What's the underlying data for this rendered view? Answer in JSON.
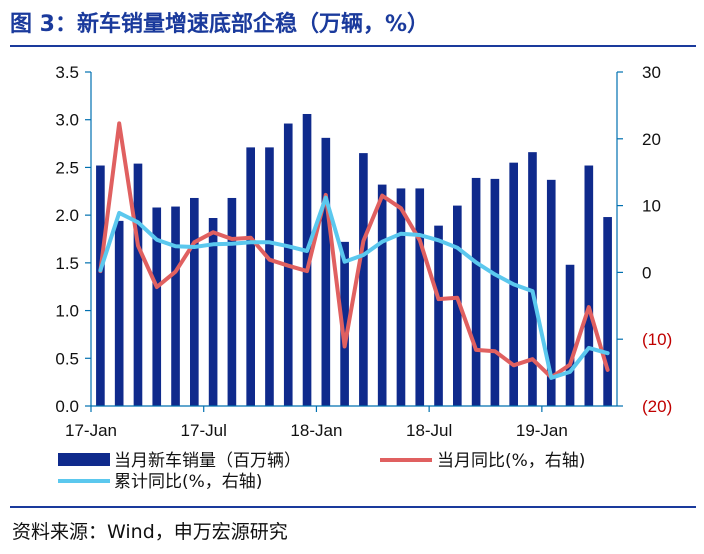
{
  "title": "图 3：新车销量增速底部企稳（万辆，%）",
  "source": "资料来源：Wind，申万宏源研究",
  "colors": {
    "title": "#1a3a9c",
    "bar": "#0f2a8c",
    "monthly_yoy": "#e06060",
    "cumulative_yoy": "#5bc8ee",
    "axis": "#0070b0",
    "negative_tick": "#c00000"
  },
  "chart_data": {
    "type": "bar+line",
    "categories": [
      "17-Jan",
      "17-Feb",
      "17-Mar",
      "17-Apr",
      "17-May",
      "17-Jun",
      "17-Jul",
      "17-Aug",
      "17-Sep",
      "17-Oct",
      "17-Nov",
      "17-Dec",
      "18-Jan",
      "18-Feb",
      "18-Mar",
      "18-Apr",
      "18-May",
      "18-Jun",
      "18-Jul",
      "18-Aug",
      "18-Sep",
      "18-Oct",
      "18-Nov",
      "18-Dec",
      "19-Jan",
      "19-Feb",
      "19-Mar",
      "19-Apr"
    ],
    "x_tick_labels": [
      "17-Jan",
      "17-Jul",
      "18-Jan",
      "18-Jul",
      "19-Jan"
    ],
    "x_tick_indices": [
      0,
      6,
      12,
      18,
      24
    ],
    "y_left": {
      "range": [
        0,
        3.5
      ],
      "ticks": [
        "0.0",
        "0.5",
        "1.0",
        "1.5",
        "2.0",
        "2.5",
        "3.0",
        "3.5"
      ]
    },
    "y_right": {
      "range": [
        -20,
        30
      ],
      "ticks": [
        "(20)",
        "(10)",
        "0",
        "10",
        "20",
        "30"
      ],
      "tick_values": [
        -20,
        -10,
        0,
        10,
        20,
        30
      ]
    },
    "series": [
      {
        "name": "当月新车销量（百万辆）",
        "type": "bar",
        "axis": "left",
        "values": [
          2.52,
          1.94,
          2.54,
          2.08,
          2.09,
          2.18,
          1.97,
          2.18,
          2.71,
          2.71,
          2.96,
          3.06,
          2.81,
          1.72,
          2.65,
          2.32,
          2.28,
          2.28,
          1.89,
          2.1,
          2.39,
          2.38,
          2.55,
          2.66,
          2.37,
          1.48,
          2.52,
          1.98
        ]
      },
      {
        "name": "当月同比(%，右轴)",
        "type": "line",
        "axis": "right",
        "values": [
          0.2,
          22.3,
          4.0,
          -2.2,
          0.1,
          4.5,
          6.0,
          5.0,
          5.2,
          1.9,
          1.0,
          0.2,
          11.6,
          -11.1,
          4.7,
          11.5,
          9.6,
          4.8,
          -4.0,
          -3.8,
          -11.6,
          -11.8,
          -13.9,
          -13.0,
          -15.7,
          -13.8,
          -5.2,
          -14.6
        ]
      },
      {
        "name": "累计同比(%，右轴)",
        "type": "line",
        "axis": "right",
        "values": [
          0.3,
          8.9,
          7.5,
          4.9,
          3.9,
          3.8,
          4.2,
          4.3,
          4.5,
          4.5,
          3.9,
          3.2,
          11.2,
          1.6,
          2.6,
          4.6,
          5.8,
          5.6,
          4.8,
          3.7,
          1.5,
          -0.3,
          -1.8,
          -2.8,
          -15.8,
          -14.9,
          -11.3,
          -12.1
        ]
      }
    ],
    "legend_position": "bottom"
  }
}
